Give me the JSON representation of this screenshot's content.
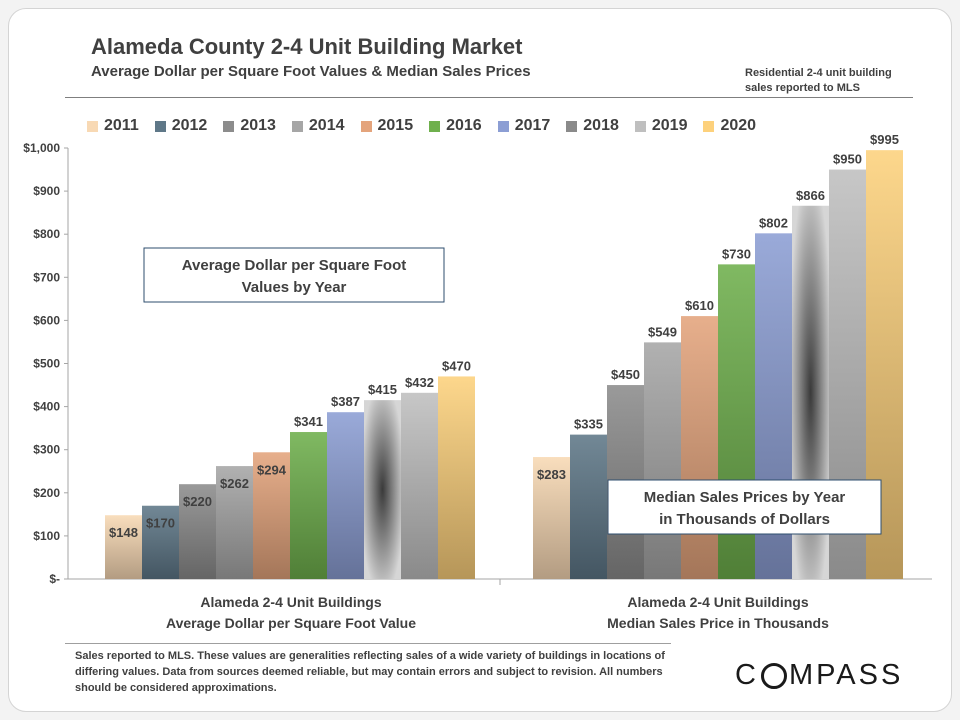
{
  "header": {
    "title": "Alameda County 2-4 Unit Building Market",
    "subtitle": "Average Dollar per Square Foot Values & Median Sales Prices",
    "note_line1": "Residential 2-4 unit building",
    "note_line2": "sales reported to MLS"
  },
  "footnote": "Sales reported to MLS. These values are generalities reflecting sales of a wide variety of buildings in locations of differing values. Data from sources deemed reliable, but may contain errors and subject to revision. All numbers should be considered approximations.",
  "logo": {
    "before": "C",
    "after": "MPASS"
  },
  "colors": {
    "2011": "#f8d9b4",
    "2012": "#5f7888",
    "2013": "#8c8c8c",
    "2014": "#a6a6a6",
    "2015": "#e4a47c",
    "2016": "#6fb04d",
    "2017": "#8c9ed4",
    "2018": "#8a8a8a",
    "2019": "#bfbfbf",
    "2020": "#fdd17c"
  },
  "chart_data": {
    "type": "bar",
    "series": [
      {
        "name": "2011",
        "values": [
          148,
          283
        ],
        "labels": [
          "$148",
          "$283"
        ]
      },
      {
        "name": "2012",
        "values": [
          170,
          335
        ],
        "labels": [
          "$170",
          "$335"
        ]
      },
      {
        "name": "2013",
        "values": [
          220,
          450
        ],
        "labels": [
          "$220",
          "$450"
        ]
      },
      {
        "name": "2014",
        "values": [
          262,
          549
        ],
        "labels": [
          "$262",
          "$549"
        ]
      },
      {
        "name": "2015",
        "values": [
          294,
          610
        ],
        "labels": [
          "$294",
          "$610"
        ]
      },
      {
        "name": "2016",
        "values": [
          341,
          730
        ],
        "labels": [
          "$341",
          "$730"
        ]
      },
      {
        "name": "2017",
        "values": [
          387,
          802
        ],
        "labels": [
          "$387",
          "$802"
        ]
      },
      {
        "name": "2018",
        "values": [
          415,
          866
        ],
        "labels": [
          "$415",
          "$866"
        ]
      },
      {
        "name": "2019",
        "values": [
          432,
          950
        ],
        "labels": [
          "$432",
          "$950"
        ]
      },
      {
        "name": "2020",
        "values": [
          470,
          995
        ],
        "labels": [
          "$470",
          "$995"
        ]
      }
    ],
    "categories": [
      {
        "line1": "Alameda 2-4 Unit Buildings",
        "line2": "Average Dollar per Square Foot Value"
      },
      {
        "line1": "Alameda 2-4 Unit Buildings",
        "line2": "Median Sales Price in Thousands"
      }
    ],
    "annotations": [
      {
        "line1": "Average Dollar per Square Foot",
        "line2": "Values by Year"
      },
      {
        "line1": "Median Sales Prices by Year",
        "line2": "in Thousands of Dollars"
      }
    ],
    "yticks": [
      {
        "value": 0,
        "label": "$-"
      },
      {
        "value": 100,
        "label": "$100"
      },
      {
        "value": 200,
        "label": "$200"
      },
      {
        "value": 300,
        "label": "$300"
      },
      {
        "value": 400,
        "label": "$400"
      },
      {
        "value": 500,
        "label": "$500"
      },
      {
        "value": 600,
        "label": "$600"
      },
      {
        "value": 700,
        "label": "$700"
      },
      {
        "value": 800,
        "label": "$800"
      },
      {
        "value": 900,
        "label": "$900"
      },
      {
        "value": 1000,
        "label": "$1,000"
      }
    ],
    "ylim": [
      0,
      1000
    ],
    "grid": false,
    "legend": "top"
  }
}
